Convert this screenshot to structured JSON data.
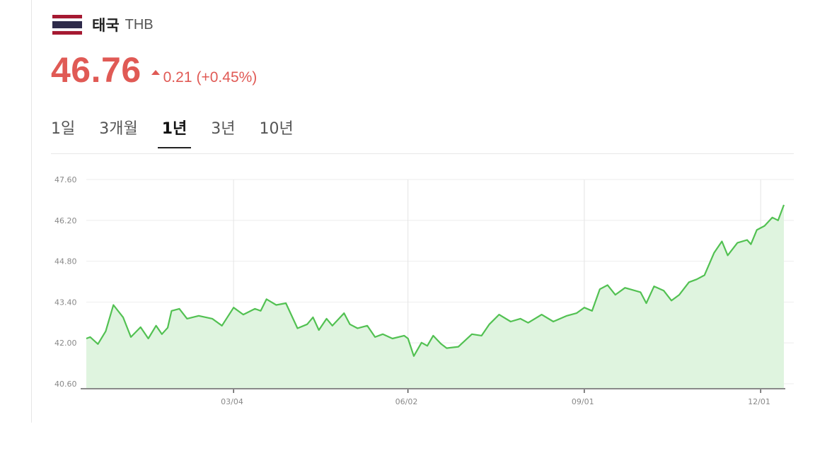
{
  "header": {
    "country": "태국",
    "currency_code": "THB",
    "flag_icon": "thailand-flag-icon",
    "flag_colors": [
      "#a51931",
      "#f4f5f8",
      "#2d2a4a",
      "#f4f5f8",
      "#a51931"
    ]
  },
  "quote": {
    "price": "46.76",
    "direction": "up",
    "change": "0.21",
    "change_percent": "(+0.45%)",
    "color": "#e05a55"
  },
  "tabs": [
    {
      "label": "1일",
      "active": false
    },
    {
      "label": "3개월",
      "active": false
    },
    {
      "label": "1년",
      "active": true
    },
    {
      "label": "3년",
      "active": false
    },
    {
      "label": "10년",
      "active": false
    }
  ],
  "chart_data": {
    "type": "area",
    "title": "",
    "xlabel": "",
    "ylabel": "",
    "ylim": [
      40.43,
      47.6
    ],
    "yticks": [
      "47.60",
      "46.20",
      "44.80",
      "43.40",
      "42.00",
      "40.60"
    ],
    "xticks": [
      "03/04",
      "06/02",
      "09/01",
      "12/01"
    ],
    "grid": true,
    "line_color": "#52c152",
    "fill_color": "#dff4df",
    "x": [
      "12/18",
      "12/20",
      "12/24",
      "12/28",
      "01/01",
      "01/06",
      "01/10",
      "01/15",
      "01/19",
      "01/23",
      "01/26",
      "01/29",
      "01/31",
      "02/04",
      "02/08",
      "02/14",
      "02/21",
      "02/26",
      "03/04",
      "03/09",
      "03/15",
      "03/18",
      "03/21",
      "03/26",
      "03/31",
      "04/06",
      "04/11",
      "04/14",
      "04/17",
      "04/21",
      "04/24",
      "04/30",
      "05/03",
      "05/07",
      "05/12",
      "05/16",
      "05/20",
      "05/25",
      "05/31",
      "06/02",
      "06/05",
      "06/09",
      "06/12",
      "06/15",
      "06/19",
      "06/22",
      "06/28",
      "07/05",
      "07/10",
      "07/14",
      "07/19",
      "07/25",
      "07/30",
      "08/03",
      "08/10",
      "08/16",
      "08/23",
      "08/28",
      "09/01",
      "09/05",
      "09/09",
      "09/13",
      "09/17",
      "09/22",
      "09/30",
      "10/03",
      "10/07",
      "10/12",
      "10/16",
      "10/20",
      "10/25",
      "10/29",
      "11/02",
      "11/07",
      "11/11",
      "11/14",
      "11/19",
      "11/24",
      "11/26",
      "11/29",
      "12/03",
      "12/07",
      "12/10",
      "12/13"
    ],
    "values": [
      42.15,
      42.2,
      41.96,
      42.4,
      43.3,
      42.88,
      42.2,
      42.54,
      42.15,
      42.59,
      42.3,
      42.52,
      43.1,
      43.17,
      42.83,
      42.93,
      42.83,
      42.59,
      43.21,
      42.97,
      43.17,
      43.1,
      43.5,
      43.3,
      43.36,
      42.5,
      42.64,
      42.88,
      42.44,
      42.83,
      42.59,
      43.02,
      42.64,
      42.5,
      42.59,
      42.2,
      42.3,
      42.15,
      42.25,
      42.15,
      41.55,
      42.01,
      41.9,
      42.25,
      41.97,
      41.82,
      41.87,
      42.3,
      42.25,
      42.64,
      42.97,
      42.73,
      42.83,
      42.69,
      42.97,
      42.73,
      42.93,
      43.02,
      43.21,
      43.1,
      43.84,
      43.98,
      43.65,
      43.89,
      43.74,
      43.36,
      43.94,
      43.79,
      43.45,
      43.65,
      44.08,
      44.18,
      44.32,
      45.09,
      45.48,
      45.0,
      45.43,
      45.53,
      45.38,
      45.87,
      46.01,
      46.3,
      46.2,
      46.73
    ]
  }
}
